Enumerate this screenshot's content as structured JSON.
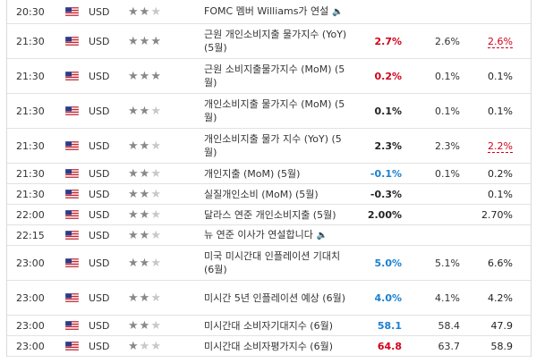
{
  "rows": [
    {
      "time": "20:30",
      "currency": "USD",
      "stars": 2,
      "event": "FOMC 멤버 Williams가 연설",
      "speech": true,
      "actual": "",
      "forecast": "",
      "previous": "",
      "actual_color": "black",
      "previous_style": "plain",
      "h": 27
    },
    {
      "time": "21:30",
      "currency": "USD",
      "stars": 3,
      "event": "근원 개인소비지출 물가지수 (YoY) (5월)",
      "speech": false,
      "actual": "2.7%",
      "forecast": "2.6%",
      "previous": "2.6%",
      "actual_color": "red",
      "previous_style": "u-red",
      "h": 39
    },
    {
      "time": "21:30",
      "currency": "USD",
      "stars": 3,
      "event": "근원 소비지출물가지수 (MoM) (5월)",
      "speech": false,
      "actual": "0.2%",
      "forecast": "0.1%",
      "previous": "0.1%",
      "actual_color": "red",
      "previous_style": "plain",
      "h": 39
    },
    {
      "time": "21:30",
      "currency": "USD",
      "stars": 2,
      "event": "개인소비지출 물가지수 (MoM) (5월)",
      "speech": false,
      "actual": "0.1%",
      "forecast": "0.1%",
      "previous": "0.1%",
      "actual_color": "black",
      "previous_style": "plain",
      "h": 39
    },
    {
      "time": "21:30",
      "currency": "USD",
      "stars": 2,
      "event": "개인소비지출 물가 지수 (YoY) (5월)",
      "speech": false,
      "actual": "2.3%",
      "forecast": "2.3%",
      "previous": "2.2%",
      "actual_color": "black",
      "previous_style": "u-red",
      "h": 39
    },
    {
      "time": "21:30",
      "currency": "USD",
      "stars": 2,
      "event": "개인지출 (MoM) (5월)",
      "speech": false,
      "actual": "-0.1%",
      "forecast": "0.1%",
      "previous": "0.2%",
      "actual_color": "blue",
      "previous_style": "plain",
      "h": 23
    },
    {
      "time": "21:30",
      "currency": "USD",
      "stars": 2,
      "event": "실질개인소비 (MoM) (5월)",
      "speech": false,
      "actual": "-0.3%",
      "forecast": "",
      "previous": "0.1%",
      "actual_color": "black",
      "previous_style": "plain",
      "h": 23
    },
    {
      "time": "22:00",
      "currency": "USD",
      "stars": 2,
      "event": "달라스 연준 개인소비지출 (5월)",
      "speech": false,
      "actual": "2.00%",
      "forecast": "",
      "previous": "2.70%",
      "actual_color": "black",
      "previous_style": "plain",
      "h": 23
    },
    {
      "time": "22:15",
      "currency": "USD",
      "stars": 2,
      "event": "뉴 연준 이사가 연설합니다",
      "speech": true,
      "actual": "",
      "forecast": "",
      "previous": "",
      "actual_color": "black",
      "previous_style": "plain",
      "h": 23
    },
    {
      "time": "23:00",
      "currency": "USD",
      "stars": 2,
      "event": "미국 미시간대 인플레이션 기대치 (6월)",
      "speech": false,
      "actual": "5.0%",
      "forecast": "5.1%",
      "previous": "6.6%",
      "actual_color": "blue",
      "previous_style": "plain",
      "h": 39
    },
    {
      "time": "23:00",
      "currency": "USD",
      "stars": 2,
      "event": "미시간 5년 인플레이션 예상 (6월)",
      "speech": false,
      "actual": "4.0%",
      "forecast": "4.1%",
      "previous": "4.2%",
      "actual_color": "blue",
      "previous_style": "plain",
      "h": 39
    },
    {
      "time": "23:00",
      "currency": "USD",
      "stars": 2,
      "event": "미시간대 소비자기대지수 (6월)",
      "speech": false,
      "actual": "58.1",
      "forecast": "58.4",
      "previous": "47.9",
      "actual_color": "blue",
      "previous_style": "plain",
      "h": 23
    },
    {
      "time": "23:00",
      "currency": "USD",
      "stars": 1,
      "event": "미시간대 소비자평가지수 (6월)",
      "speech": false,
      "actual": "64.8",
      "forecast": "63.7",
      "previous": "58.9",
      "actual_color": "red",
      "previous_style": "plain",
      "h": 23
    }
  ],
  "colors": {
    "red": "#d0021b",
    "blue": "#1a7fd1",
    "star_on": "#888888",
    "star_off": "#c8c8c8"
  }
}
